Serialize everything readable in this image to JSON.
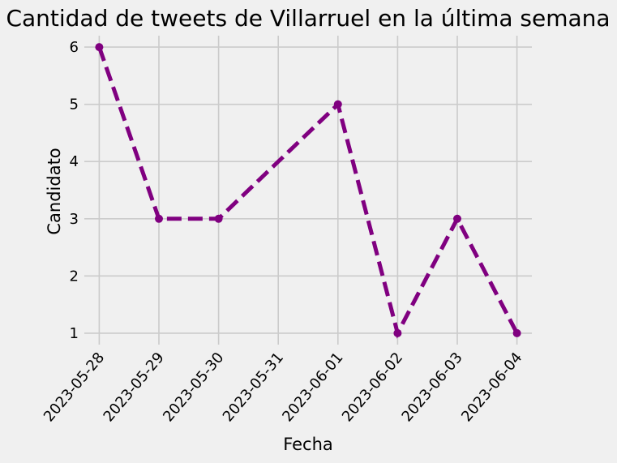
{
  "chart_data": {
    "type": "line",
    "title": "Cantidad de tweets de Villarruel en la última semana",
    "xlabel": "Fecha",
    "ylabel": "Candidato",
    "x": [
      "2023-05-28",
      "2023-05-29",
      "2023-05-30",
      "2023-05-31",
      "2023-06-01",
      "2023-06-02",
      "2023-06-03",
      "2023-06-04"
    ],
    "x_ticks": [
      "2023-05-28",
      "2023-05-29",
      "2023-05-30",
      "2023-05-31",
      "2023-06-01",
      "2023-06-02",
      "2023-06-03",
      "2023-06-04"
    ],
    "series": [
      {
        "points": [
          {
            "x": "2023-05-28",
            "y": 6
          },
          {
            "x": "2023-05-29",
            "y": 3
          },
          {
            "x": "2023-05-30",
            "y": 3
          },
          {
            "x": "2023-06-01",
            "y": 5
          },
          {
            "x": "2023-06-02",
            "y": 1
          },
          {
            "x": "2023-06-03",
            "y": 3
          },
          {
            "x": "2023-06-04",
            "y": 1
          }
        ],
        "color": "#800080",
        "line_style": "dashed",
        "marker": "circle"
      }
    ],
    "y_ticks": [
      1,
      2,
      3,
      4,
      5,
      6
    ],
    "ylim": [
      0.8,
      6.2
    ],
    "xlim": [
      "2023-05-27T18:00",
      "2023-06-04T06:00"
    ],
    "grid": true,
    "background": "#f0f0f0"
  }
}
